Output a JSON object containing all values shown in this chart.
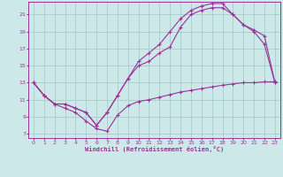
{
  "xlabel": "Windchill (Refroidissement éolien,°C)",
  "bg_color": "#cce8e8",
  "grid_color": "#aacccc",
  "line_color": "#993399",
  "x_ticks": [
    0,
    1,
    2,
    3,
    4,
    5,
    6,
    7,
    8,
    9,
    10,
    11,
    12,
    13,
    14,
    15,
    16,
    17,
    18,
    19,
    20,
    21,
    22,
    23
  ],
  "y_ticks": [
    7,
    9,
    11,
    13,
    15,
    17,
    19,
    21
  ],
  "xlim": [
    -0.5,
    23.5
  ],
  "ylim": [
    6.5,
    22.5
  ],
  "series1_x": [
    0,
    1,
    2,
    3,
    4,
    5,
    6,
    7,
    8,
    9,
    10,
    11,
    12,
    13,
    14,
    15,
    16,
    17,
    18,
    19,
    20,
    21,
    22,
    23
  ],
  "series1_y": [
    13.0,
    11.5,
    10.5,
    10.0,
    9.5,
    8.5,
    7.6,
    7.3,
    9.2,
    10.3,
    10.8,
    11.0,
    11.3,
    11.6,
    11.9,
    12.1,
    12.3,
    12.5,
    12.7,
    12.85,
    13.0,
    13.0,
    13.1,
    13.1
  ],
  "series2_x": [
    0,
    1,
    2,
    3,
    4,
    5,
    6,
    7,
    8,
    9,
    10,
    11,
    12,
    13,
    14,
    15,
    16,
    17,
    18,
    19,
    20,
    21,
    22,
    23
  ],
  "series2_y": [
    13.0,
    11.5,
    10.5,
    10.5,
    10.0,
    9.5,
    8.0,
    9.5,
    11.5,
    13.5,
    15.5,
    16.5,
    17.5,
    19.0,
    20.5,
    21.5,
    22.0,
    22.3,
    22.3,
    21.0,
    19.8,
    19.2,
    18.5,
    13.0
  ],
  "series3_x": [
    0,
    1,
    2,
    3,
    4,
    5,
    6,
    7,
    8,
    9,
    10,
    11,
    12,
    13,
    14,
    15,
    16,
    17,
    18,
    19,
    20,
    21,
    22,
    23
  ],
  "series3_y": [
    13.0,
    11.5,
    10.5,
    10.5,
    10.0,
    9.5,
    8.0,
    9.5,
    11.5,
    13.5,
    15.0,
    15.5,
    16.5,
    17.2,
    19.5,
    21.0,
    21.5,
    21.8,
    21.8,
    21.0,
    19.8,
    19.0,
    17.5,
    13.0
  ]
}
